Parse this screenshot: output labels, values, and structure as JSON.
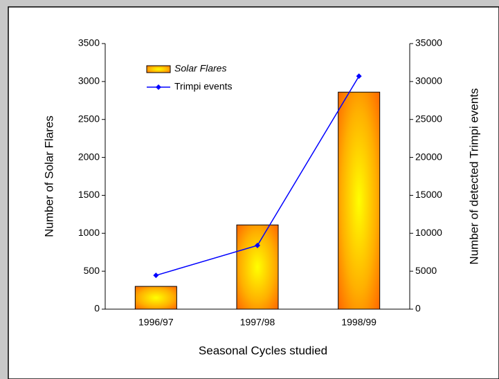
{
  "chart_data": {
    "type": "bar_line",
    "categories": [
      "1996/97",
      "1997/98",
      "1998/99"
    ],
    "series": [
      {
        "name": "Solar Flares",
        "type": "bar",
        "color": "#ff6a00",
        "values": [
          300,
          1110,
          2860
        ]
      },
      {
        "name": "Trimpi events",
        "type": "line",
        "axis": "y2",
        "color": "#0000ff",
        "values": [
          4450,
          8400,
          30700
        ]
      }
    ],
    "x_label": "Seasonal Cycles studied",
    "y_label": "Number of Solar Flares",
    "y2_label": "Number of detected Trimpi events",
    "ylim": [
      0,
      3500
    ],
    "yticks": [
      0,
      500,
      1000,
      1500,
      2000,
      2500,
      3000,
      3500
    ],
    "y2lim": [
      0,
      35000
    ],
    "y2ticks": [
      0,
      5000,
      10000,
      15000,
      20000,
      25000,
      30000,
      35000
    ],
    "legend": "upper left"
  }
}
